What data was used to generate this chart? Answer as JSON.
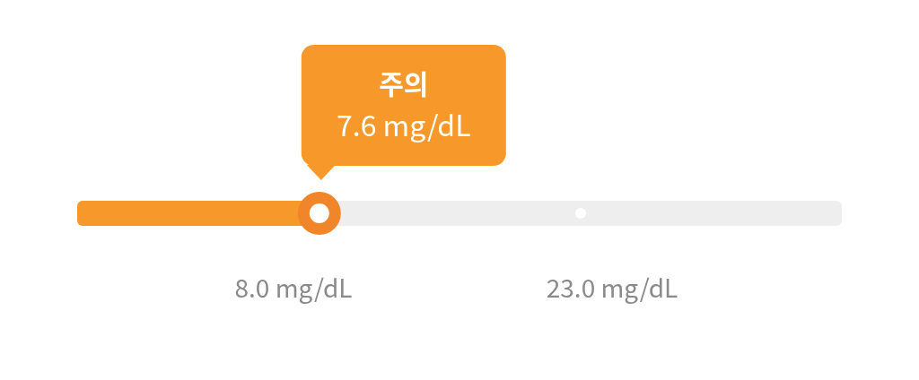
{
  "chart_data": {
    "type": "other",
    "values": [
      7.6
    ],
    "value_labels": [
      "7.6 mg/dL"
    ],
    "colors": [
      "#f7992a"
    ],
    "annotations": [
      "주의",
      "8.0 mg/dL",
      "23.0 mg/dL"
    ]
  }
}
